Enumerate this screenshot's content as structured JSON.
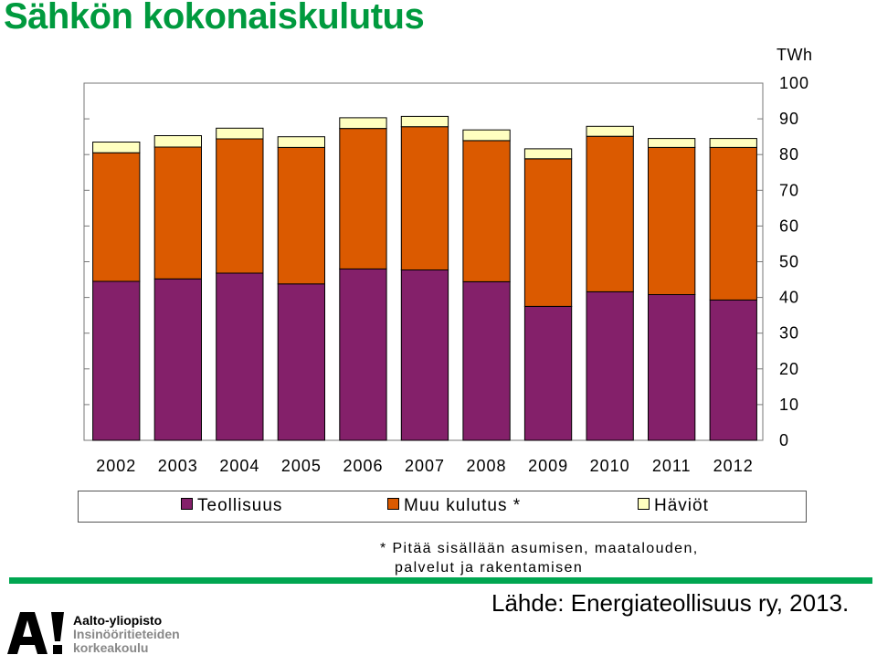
{
  "title": "Sähkön kokonaiskulutus",
  "footnote": {
    "line1": "* Pitää sisällään asumisen, maatalouden,",
    "line2": "palvelut ja rakentamisen"
  },
  "source": "Lähde: Energiateollisuus ry, 2013.",
  "logo": {
    "mark": "A!",
    "line1": "Aalto-yliopisto",
    "line2": "Insinööritieteiden",
    "line3": "korkeakoulu"
  },
  "colors": {
    "title": "#009a3e",
    "teollisuus": "#84206a",
    "muu": "#db5a00",
    "haviot": "#ffffc0",
    "green_bar": "#00a651"
  },
  "chart_data": {
    "type": "bar",
    "stacked": true,
    "unit_label": "TWh",
    "categories": [
      "2002",
      "2003",
      "2004",
      "2005",
      "2006",
      "2007",
      "2008",
      "2009",
      "2010",
      "2011",
      "2012"
    ],
    "series": [
      {
        "name": "Teollisuus",
        "color": "#84206a",
        "values": [
          44.5,
          45.2,
          46.8,
          43.8,
          48.0,
          47.7,
          44.4,
          37.5,
          41.6,
          40.8,
          39.3
        ]
      },
      {
        "name": "Muu kulutus *",
        "color": "#db5a00",
        "values": [
          36.0,
          36.9,
          37.6,
          38.2,
          39.3,
          40.1,
          39.5,
          41.3,
          43.5,
          41.2,
          42.7
        ]
      },
      {
        "name": "Häviöt",
        "color": "#ffffc0",
        "values": [
          3.0,
          3.2,
          3.0,
          3.0,
          3.0,
          2.9,
          3.0,
          2.8,
          2.8,
          2.5,
          2.5
        ]
      }
    ],
    "ylim": [
      0,
      100
    ],
    "yticks": [
      "0",
      "10",
      "20",
      "30",
      "40",
      "50",
      "60",
      "70",
      "80",
      "90",
      "100"
    ],
    "y_axis_side": "right",
    "grid": false,
    "legend_position": "bottom"
  }
}
